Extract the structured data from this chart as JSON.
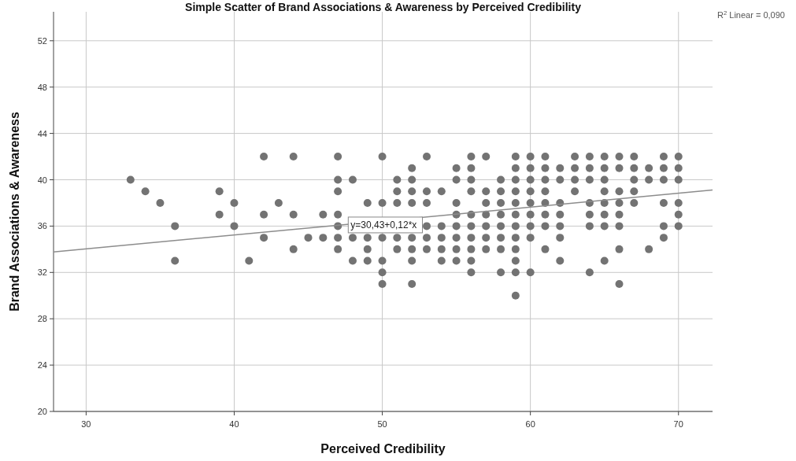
{
  "chart_data": {
    "type": "scatter",
    "title": "Simple Scatter of Brand Associations & Awareness by Perceived Credibility",
    "xlabel": "Perceived Credibility",
    "ylabel": "Brand Associations & Awareness",
    "xlim": [
      27.8,
      72.3
    ],
    "xticks": [
      30,
      40,
      50,
      60,
      70
    ],
    "ylim": [
      20,
      54.5
    ],
    "yticks": [
      20,
      24,
      28,
      32,
      36,
      40,
      44,
      48,
      52
    ],
    "grid": true,
    "series": [
      {
        "marker": "circle",
        "color": "#737373",
        "x": [
          33,
          34,
          35,
          36,
          36,
          39,
          39,
          40,
          40,
          41,
          42,
          42,
          42,
          43,
          44,
          44,
          44,
          45,
          46,
          46,
          47,
          47,
          47,
          47,
          47,
          47,
          47,
          48,
          48,
          48,
          49,
          49,
          49,
          49,
          50,
          50,
          50,
          50,
          50,
          50,
          51,
          51,
          51,
          51,
          51,
          52,
          52,
          52,
          52,
          52,
          52,
          52,
          52,
          53,
          53,
          53,
          53,
          53,
          53,
          54,
          54,
          54,
          54,
          54,
          55,
          55,
          55,
          55,
          55,
          55,
          55,
          55,
          56,
          56,
          56,
          56,
          56,
          56,
          56,
          56,
          56,
          56,
          57,
          57,
          57,
          57,
          57,
          57,
          57,
          58,
          58,
          58,
          58,
          58,
          58,
          58,
          58,
          59,
          59,
          59,
          59,
          59,
          59,
          59,
          59,
          59,
          59,
          59,
          59,
          60,
          60,
          60,
          60,
          60,
          60,
          60,
          60,
          60,
          61,
          61,
          61,
          61,
          61,
          61,
          61,
          61,
          62,
          62,
          62,
          62,
          62,
          62,
          62,
          63,
          63,
          63,
          63,
          64,
          64,
          64,
          64,
          64,
          64,
          64,
          65,
          65,
          65,
          65,
          65,
          65,
          65,
          65,
          66,
          66,
          66,
          66,
          66,
          66,
          66,
          66,
          67,
          67,
          67,
          67,
          67,
          68,
          68,
          68,
          69,
          69,
          69,
          69,
          69,
          69,
          70,
          70,
          70,
          70,
          70,
          70
        ],
        "values": [
          40,
          39,
          38,
          36,
          33,
          39,
          37,
          38,
          36,
          33,
          42,
          37,
          35,
          38,
          42,
          37,
          34,
          35,
          37,
          35,
          42,
          40,
          39,
          37,
          36,
          35,
          34,
          40,
          35,
          33,
          38,
          35,
          34,
          33,
          42,
          38,
          35,
          33,
          32,
          31,
          40,
          39,
          38,
          35,
          34,
          41,
          40,
          39,
          38,
          35,
          34,
          33,
          31,
          42,
          39,
          38,
          36,
          35,
          34,
          39,
          36,
          35,
          34,
          33,
          41,
          40,
          38,
          37,
          36,
          35,
          34,
          33,
          42,
          41,
          40,
          39,
          37,
          36,
          35,
          34,
          33,
          32,
          42,
          39,
          38,
          37,
          36,
          35,
          34,
          40,
          39,
          38,
          37,
          36,
          35,
          34,
          32,
          42,
          41,
          40,
          39,
          38,
          37,
          36,
          35,
          34,
          33,
          32,
          30,
          42,
          41,
          40,
          39,
          38,
          37,
          36,
          35,
          32,
          42,
          41,
          40,
          39,
          38,
          37,
          36,
          34,
          41,
          40,
          38,
          37,
          36,
          35,
          33,
          42,
          41,
          40,
          39,
          42,
          41,
          40,
          38,
          37,
          36,
          32,
          42,
          41,
          40,
          39,
          38,
          37,
          36,
          33,
          42,
          41,
          39,
          38,
          37,
          36,
          34,
          31,
          42,
          41,
          40,
          39,
          38,
          41,
          40,
          34,
          42,
          41,
          40,
          38,
          36,
          35,
          42,
          41,
          40,
          38,
          37,
          36
        ]
      },
      {
        "type": "line",
        "color": "#8c8c8c",
        "x": [
          27.8,
          72.3
        ],
        "values": [
          33.77,
          39.11
        ]
      }
    ],
    "annotations": [
      {
        "text": "y=30,43+0,12*x",
        "x": 47.7,
        "y": 36.1
      },
      "R$^{2}$ Linear = 0,090"
    ]
  }
}
